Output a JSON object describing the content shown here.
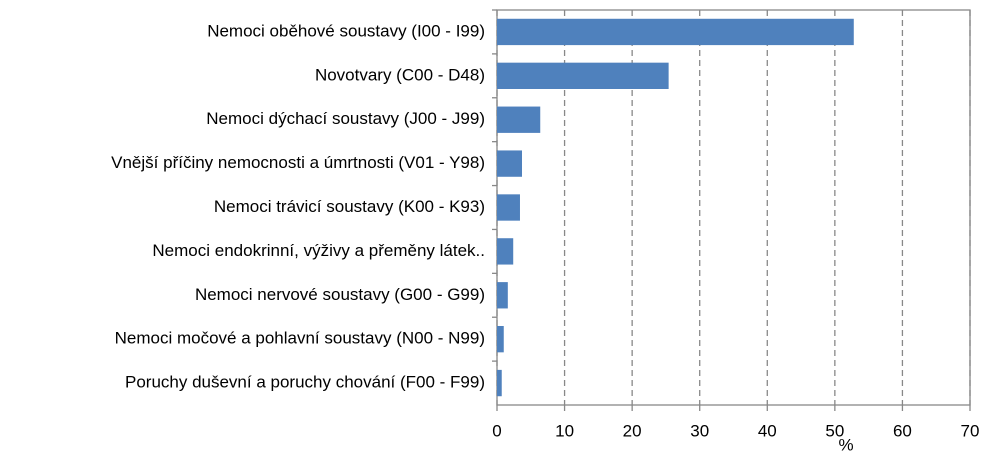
{
  "chart_data": {
    "type": "barh",
    "categories": [
      "Nemoci oběhové soustavy (I00 - I99)",
      "Novotvary (C00 - D48)",
      "Nemoci dýchací soustavy (J00 - J99)",
      "Vnější příčiny nemocnosti a úmrtnosti (V01 - Y98)",
      "Nemoci trávicí soustavy (K00 - K93)",
      "Nemoci endokrinní, výživy a přeměny látek..",
      "Nemoci nervové soustavy (G00 - G99)",
      "Nemoci močové a pohlavní soustavy (N00 - N99)",
      "Poruchy duševní a poruchy chování (F00 - F99)"
    ],
    "values": [
      52.8,
      25.4,
      6.4,
      3.7,
      3.4,
      2.4,
      1.6,
      1.0,
      0.7
    ],
    "color": "#4f81bd",
    "xlabel": "%",
    "xlim": [
      0,
      70
    ],
    "xticks": [
      0,
      10,
      20,
      30,
      40,
      50,
      60,
      70
    ],
    "grid": true
  }
}
